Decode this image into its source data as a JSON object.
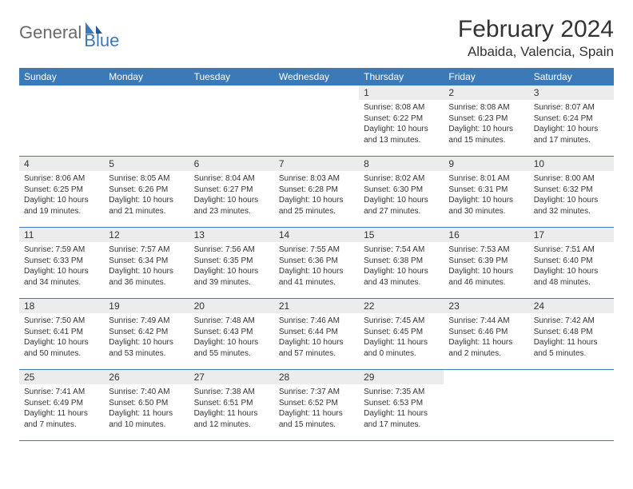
{
  "logo": {
    "part1": "General",
    "part2": "Blue"
  },
  "title": "February 2024",
  "location": "Albaida, Valencia, Spain",
  "colors": {
    "header_bg": "#3b79b7",
    "header_text": "#ffffff",
    "daynum_bg": "#ececec",
    "border": "#3b79b7",
    "text": "#333333",
    "logo_gray": "#6a6a6a",
    "logo_blue": "#3b79b7",
    "page_bg": "#ffffff"
  },
  "weekdays": [
    "Sunday",
    "Monday",
    "Tuesday",
    "Wednesday",
    "Thursday",
    "Friday",
    "Saturday"
  ],
  "weeks": [
    [
      {
        "day": "",
        "sunrise": "",
        "sunset": "",
        "daylight": ""
      },
      {
        "day": "",
        "sunrise": "",
        "sunset": "",
        "daylight": ""
      },
      {
        "day": "",
        "sunrise": "",
        "sunset": "",
        "daylight": ""
      },
      {
        "day": "",
        "sunrise": "",
        "sunset": "",
        "daylight": ""
      },
      {
        "day": "1",
        "sunrise": "Sunrise: 8:08 AM",
        "sunset": "Sunset: 6:22 PM",
        "daylight": "Daylight: 10 hours and 13 minutes."
      },
      {
        "day": "2",
        "sunrise": "Sunrise: 8:08 AM",
        "sunset": "Sunset: 6:23 PM",
        "daylight": "Daylight: 10 hours and 15 minutes."
      },
      {
        "day": "3",
        "sunrise": "Sunrise: 8:07 AM",
        "sunset": "Sunset: 6:24 PM",
        "daylight": "Daylight: 10 hours and 17 minutes."
      }
    ],
    [
      {
        "day": "4",
        "sunrise": "Sunrise: 8:06 AM",
        "sunset": "Sunset: 6:25 PM",
        "daylight": "Daylight: 10 hours and 19 minutes."
      },
      {
        "day": "5",
        "sunrise": "Sunrise: 8:05 AM",
        "sunset": "Sunset: 6:26 PM",
        "daylight": "Daylight: 10 hours and 21 minutes."
      },
      {
        "day": "6",
        "sunrise": "Sunrise: 8:04 AM",
        "sunset": "Sunset: 6:27 PM",
        "daylight": "Daylight: 10 hours and 23 minutes."
      },
      {
        "day": "7",
        "sunrise": "Sunrise: 8:03 AM",
        "sunset": "Sunset: 6:28 PM",
        "daylight": "Daylight: 10 hours and 25 minutes."
      },
      {
        "day": "8",
        "sunrise": "Sunrise: 8:02 AM",
        "sunset": "Sunset: 6:30 PM",
        "daylight": "Daylight: 10 hours and 27 minutes."
      },
      {
        "day": "9",
        "sunrise": "Sunrise: 8:01 AM",
        "sunset": "Sunset: 6:31 PM",
        "daylight": "Daylight: 10 hours and 30 minutes."
      },
      {
        "day": "10",
        "sunrise": "Sunrise: 8:00 AM",
        "sunset": "Sunset: 6:32 PM",
        "daylight": "Daylight: 10 hours and 32 minutes."
      }
    ],
    [
      {
        "day": "11",
        "sunrise": "Sunrise: 7:59 AM",
        "sunset": "Sunset: 6:33 PM",
        "daylight": "Daylight: 10 hours and 34 minutes."
      },
      {
        "day": "12",
        "sunrise": "Sunrise: 7:57 AM",
        "sunset": "Sunset: 6:34 PM",
        "daylight": "Daylight: 10 hours and 36 minutes."
      },
      {
        "day": "13",
        "sunrise": "Sunrise: 7:56 AM",
        "sunset": "Sunset: 6:35 PM",
        "daylight": "Daylight: 10 hours and 39 minutes."
      },
      {
        "day": "14",
        "sunrise": "Sunrise: 7:55 AM",
        "sunset": "Sunset: 6:36 PM",
        "daylight": "Daylight: 10 hours and 41 minutes."
      },
      {
        "day": "15",
        "sunrise": "Sunrise: 7:54 AM",
        "sunset": "Sunset: 6:38 PM",
        "daylight": "Daylight: 10 hours and 43 minutes."
      },
      {
        "day": "16",
        "sunrise": "Sunrise: 7:53 AM",
        "sunset": "Sunset: 6:39 PM",
        "daylight": "Daylight: 10 hours and 46 minutes."
      },
      {
        "day": "17",
        "sunrise": "Sunrise: 7:51 AM",
        "sunset": "Sunset: 6:40 PM",
        "daylight": "Daylight: 10 hours and 48 minutes."
      }
    ],
    [
      {
        "day": "18",
        "sunrise": "Sunrise: 7:50 AM",
        "sunset": "Sunset: 6:41 PM",
        "daylight": "Daylight: 10 hours and 50 minutes."
      },
      {
        "day": "19",
        "sunrise": "Sunrise: 7:49 AM",
        "sunset": "Sunset: 6:42 PM",
        "daylight": "Daylight: 10 hours and 53 minutes."
      },
      {
        "day": "20",
        "sunrise": "Sunrise: 7:48 AM",
        "sunset": "Sunset: 6:43 PM",
        "daylight": "Daylight: 10 hours and 55 minutes."
      },
      {
        "day": "21",
        "sunrise": "Sunrise: 7:46 AM",
        "sunset": "Sunset: 6:44 PM",
        "daylight": "Daylight: 10 hours and 57 minutes."
      },
      {
        "day": "22",
        "sunrise": "Sunrise: 7:45 AM",
        "sunset": "Sunset: 6:45 PM",
        "daylight": "Daylight: 11 hours and 0 minutes."
      },
      {
        "day": "23",
        "sunrise": "Sunrise: 7:44 AM",
        "sunset": "Sunset: 6:46 PM",
        "daylight": "Daylight: 11 hours and 2 minutes."
      },
      {
        "day": "24",
        "sunrise": "Sunrise: 7:42 AM",
        "sunset": "Sunset: 6:48 PM",
        "daylight": "Daylight: 11 hours and 5 minutes."
      }
    ],
    [
      {
        "day": "25",
        "sunrise": "Sunrise: 7:41 AM",
        "sunset": "Sunset: 6:49 PM",
        "daylight": "Daylight: 11 hours and 7 minutes."
      },
      {
        "day": "26",
        "sunrise": "Sunrise: 7:40 AM",
        "sunset": "Sunset: 6:50 PM",
        "daylight": "Daylight: 11 hours and 10 minutes."
      },
      {
        "day": "27",
        "sunrise": "Sunrise: 7:38 AM",
        "sunset": "Sunset: 6:51 PM",
        "daylight": "Daylight: 11 hours and 12 minutes."
      },
      {
        "day": "28",
        "sunrise": "Sunrise: 7:37 AM",
        "sunset": "Sunset: 6:52 PM",
        "daylight": "Daylight: 11 hours and 15 minutes."
      },
      {
        "day": "29",
        "sunrise": "Sunrise: 7:35 AM",
        "sunset": "Sunset: 6:53 PM",
        "daylight": "Daylight: 11 hours and 17 minutes."
      },
      {
        "day": "",
        "sunrise": "",
        "sunset": "",
        "daylight": ""
      },
      {
        "day": "",
        "sunrise": "",
        "sunset": "",
        "daylight": ""
      }
    ]
  ]
}
